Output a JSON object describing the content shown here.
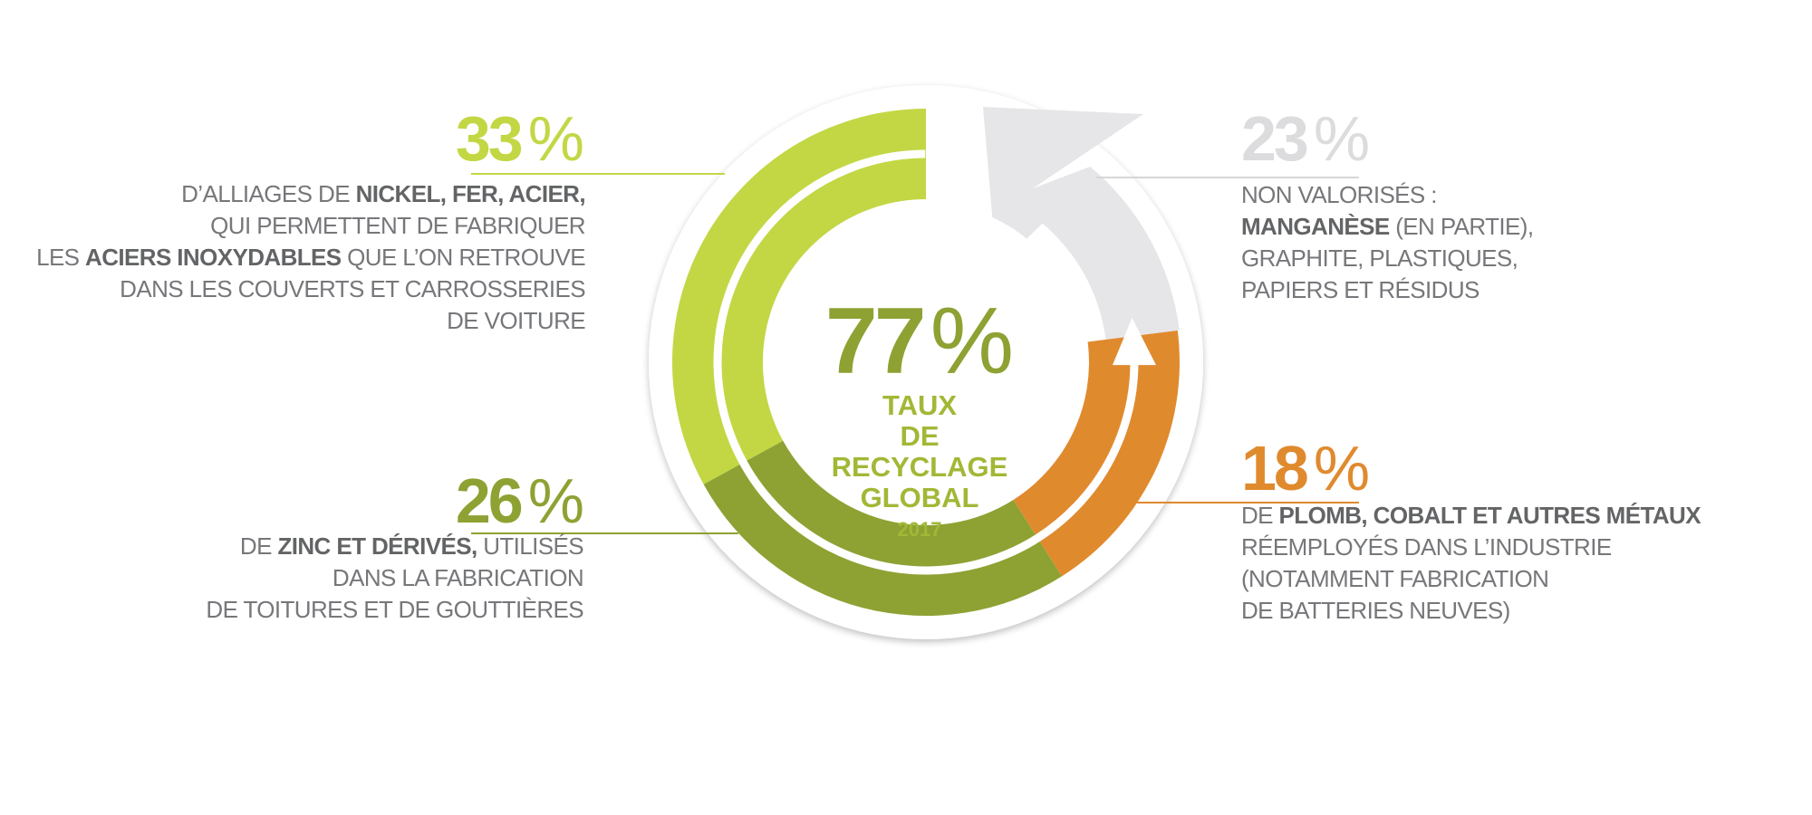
{
  "colors": {
    "light_green": "#c3d745",
    "dark_green": "#8da233",
    "orange": "#e08a2e",
    "grey_arrow": "#e6e6e8",
    "grey_pct": "#dcdcde",
    "text": "#76777a",
    "text_bold": "#636466"
  },
  "center": {
    "value": "77",
    "symbol": "%",
    "label_lines": [
      "TAUX",
      "DE RECYCLAGE",
      "GLOBAL"
    ],
    "year": "2017"
  },
  "segments": {
    "nickel": {
      "value": "33",
      "symbol": "%",
      "lines": [
        [
          {
            "t": "D’ALLIAGES DE ",
            "b": false
          },
          {
            "t": "NICKEL, FER, ACIER,",
            "b": true
          }
        ],
        [
          {
            "t": "QUI PERMETTENT DE FABRIQUER",
            "b": false
          }
        ],
        [
          {
            "t": "LES ",
            "b": false
          },
          {
            "t": "ACIERS INOXYDABLES",
            "b": true
          },
          {
            "t": " QUE L’ON RETROUVE",
            "b": false
          }
        ],
        [
          {
            "t": "DANS LES COUVERTS ET CARROSSERIES",
            "b": false
          }
        ],
        [
          {
            "t": "DE VOITURE",
            "b": false
          }
        ]
      ]
    },
    "zinc": {
      "value": "26",
      "symbol": "%",
      "lines": [
        [
          {
            "t": "DE ",
            "b": false
          },
          {
            "t": "ZINC ET DÉRIVÉS,",
            "b": true
          },
          {
            "t": " UTILISÉS",
            "b": false
          }
        ],
        [
          {
            "t": "DANS LA FABRICATION",
            "b": false
          }
        ],
        [
          {
            "t": "DE TOITURES ET DE GOUTTIÈRES",
            "b": false
          }
        ]
      ]
    },
    "plomb": {
      "value": "18",
      "symbol": "%",
      "lines": [
        [
          {
            "t": "DE ",
            "b": false
          },
          {
            "t": "PLOMB, COBALT ET AUTRES MÉTAUX",
            "b": true
          }
        ],
        [
          {
            "t": "RÉEMPLOYÉS DANS L’INDUSTRIE",
            "b": false
          }
        ],
        [
          {
            "t": "(NOTAMMENT FABRICATION",
            "b": false
          }
        ],
        [
          {
            "t": "DE BATTERIES NEUVES)",
            "b": false
          }
        ]
      ]
    },
    "non_valorises": {
      "value": "23",
      "symbol": "%",
      "lines": [
        [
          {
            "t": "NON VALORISÉS :",
            "b": false
          }
        ],
        [
          {
            "t": "MANGANÈSE",
            "b": true
          },
          {
            "t": " (EN PARTIE),",
            "b": false
          }
        ],
        [
          {
            "t": "GRAPHITE, PLASTIQUES,",
            "b": false
          }
        ],
        [
          {
            "t": "PAPIERS ET RÉSIDUS",
            "b": false
          }
        ]
      ]
    }
  },
  "chart_data": {
    "type": "pie",
    "title": "",
    "center_value": 77,
    "labels": [
      "33 %",
      "26 %",
      "18 %",
      "23 %"
    ],
    "values": [
      33,
      26,
      18,
      23
    ],
    "colors": [
      "#c3d745",
      "#8da233",
      "#e08a2e",
      "#e6e6e8"
    ],
    "order": "counter-clockwise from top"
  }
}
